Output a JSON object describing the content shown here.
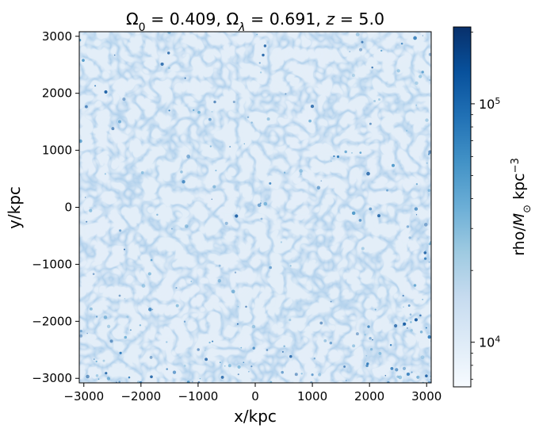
{
  "chart_data": {
    "type": "heatmap",
    "title": "Ω₀ = 0.409, Ωλ = 0.691, z = 5.0",
    "title_parts": {
      "omega0_value": "0.409",
      "omegalambda_value": "0.691",
      "z_value": "5.0"
    },
    "xlabel": "x/kpc",
    "ylabel": "y/kpc",
    "xlim": [
      -3080,
      3080
    ],
    "ylim": [
      -3080,
      3080
    ],
    "x_ticks": [
      -3000,
      -2000,
      -1000,
      0,
      1000,
      2000,
      3000
    ],
    "y_ticks": [
      -3000,
      -2000,
      -1000,
      0,
      1000,
      2000,
      3000
    ],
    "x_tick_labels": [
      "−3000",
      "−2000",
      "−1000",
      "0",
      "1000",
      "2000",
      "3000"
    ],
    "y_tick_labels": [
      "−3000",
      "−2000",
      "−1000",
      "0",
      "1000",
      "2000",
      "3000"
    ],
    "colorbar": {
      "label": "rho/M⊙ kpc⁻³",
      "label_parts": {
        "prefix": "rho/",
        "mass": "M",
        "sun": "⊙",
        "unit": " kpc",
        "exp": "−3"
      },
      "scale": "log",
      "range": [
        6500,
        210000
      ],
      "major_ticks": [
        10000,
        100000
      ],
      "major_tick_labels": [
        {
          "base": "10",
          "exp": "4"
        },
        {
          "base": "10",
          "exp": "5"
        }
      ],
      "minor_ticks": [
        7000,
        8000,
        9000,
        20000,
        30000,
        40000,
        50000,
        60000,
        70000,
        80000,
        90000,
        200000
      ],
      "colormap": "Blues",
      "color_stops": [
        "#f7fbff",
        "#deebf7",
        "#c6dbef",
        "#9ecae1",
        "#6baed6",
        "#4292c6",
        "#2171b5",
        "#08519c",
        "#08306b"
      ]
    },
    "grid": false
  }
}
